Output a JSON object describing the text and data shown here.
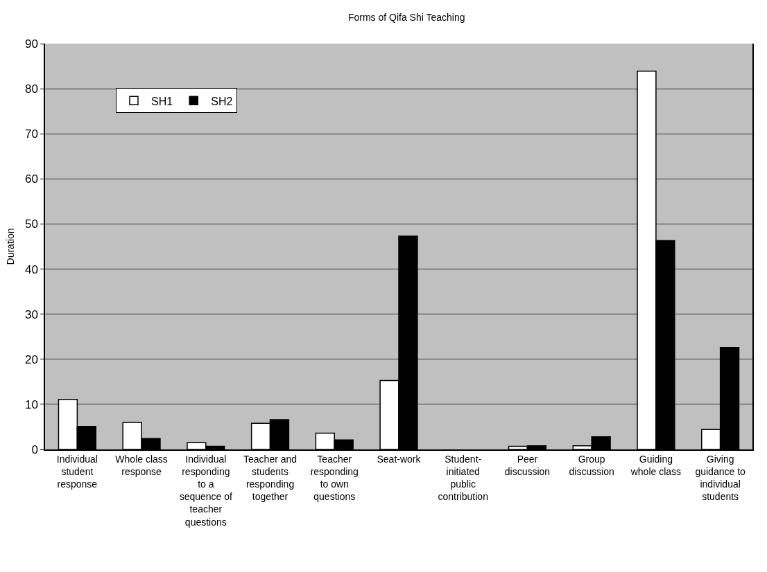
{
  "chart_data": {
    "type": "bar",
    "title": "Forms of Qifa Shi Teaching",
    "ylabel": "Duration",
    "categories": [
      "Individual student response",
      "Whole class response",
      "Individual responding to a sequence of teacher questions",
      "Teacher and students responding together",
      "Teacher responding to own questions",
      "Seat-work",
      "Student-initiated public contribution",
      "Peer discussion",
      "Group discussion",
      "Guiding whole class",
      "Giving guidance to individual students"
    ],
    "series": [
      {
        "name": "SH1",
        "color": "#ffffff",
        "values": [
          11.1,
          6.0,
          1.5,
          5.8,
          3.6,
          15.3,
          0,
          0.7,
          0.8,
          83.9,
          4.4
        ]
      },
      {
        "name": "SH2",
        "color": "#000000",
        "values": [
          5.1,
          2.4,
          0.7,
          6.6,
          2.1,
          47.3,
          0,
          0.8,
          2.8,
          46.3,
          22.6
        ]
      }
    ],
    "ylim": [
      0,
      90
    ],
    "yticks": [
      0,
      10,
      20,
      30,
      40,
      50,
      60,
      70,
      80,
      90
    ],
    "grid": "y",
    "legend": "top left"
  }
}
